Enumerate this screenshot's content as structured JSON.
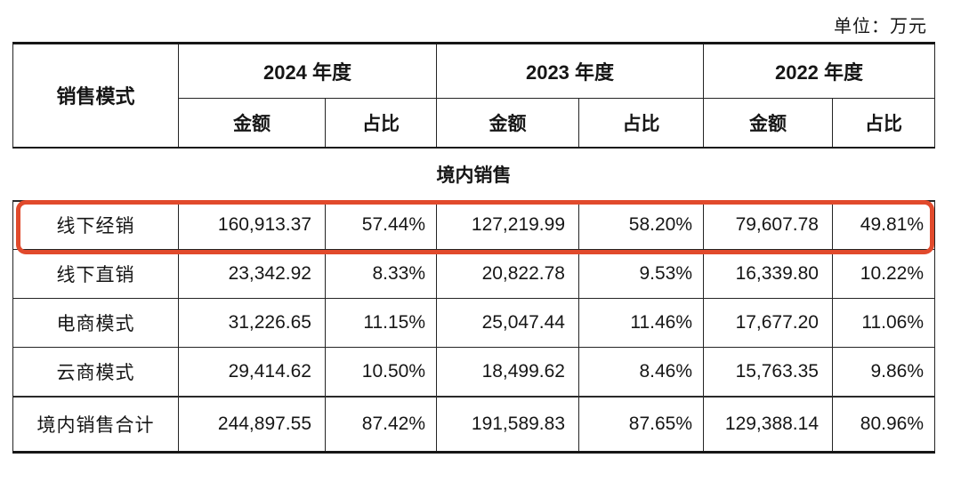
{
  "unit_label": "单位：万元",
  "table": {
    "col1_header": "销售模式",
    "year_groups": [
      {
        "label": "2024 年度"
      },
      {
        "label": "2023 年度"
      },
      {
        "label": "2022 年度"
      }
    ],
    "sub_headers": {
      "amount": "金额",
      "ratio": "占比"
    },
    "section_label": "境内销售",
    "rows": [
      {
        "label": "线下经销",
        "highlight": true,
        "values": [
          "160,913.37",
          "57.44%",
          "127,219.99",
          "58.20%",
          "79,607.78",
          "49.81%"
        ]
      },
      {
        "label": "线下直销",
        "highlight": false,
        "values": [
          "23,342.92",
          "8.33%",
          "20,822.78",
          "9.53%",
          "16,339.80",
          "10.22%"
        ]
      },
      {
        "label": "电商模式",
        "highlight": false,
        "values": [
          "31,226.65",
          "11.15%",
          "25,047.44",
          "11.46%",
          "17,677.20",
          "11.06%"
        ]
      },
      {
        "label": "云商模式",
        "highlight": false,
        "values": [
          "29,414.62",
          "10.50%",
          "18,499.62",
          "8.46%",
          "15,763.35",
          "9.86%"
        ]
      },
      {
        "label": "境内销售合计",
        "highlight": false,
        "values": [
          "244,897.55",
          "87.42%",
          "191,589.83",
          "87.65%",
          "129,388.14",
          "80.96%"
        ]
      }
    ],
    "highlight_color": "#e14a2c"
  }
}
